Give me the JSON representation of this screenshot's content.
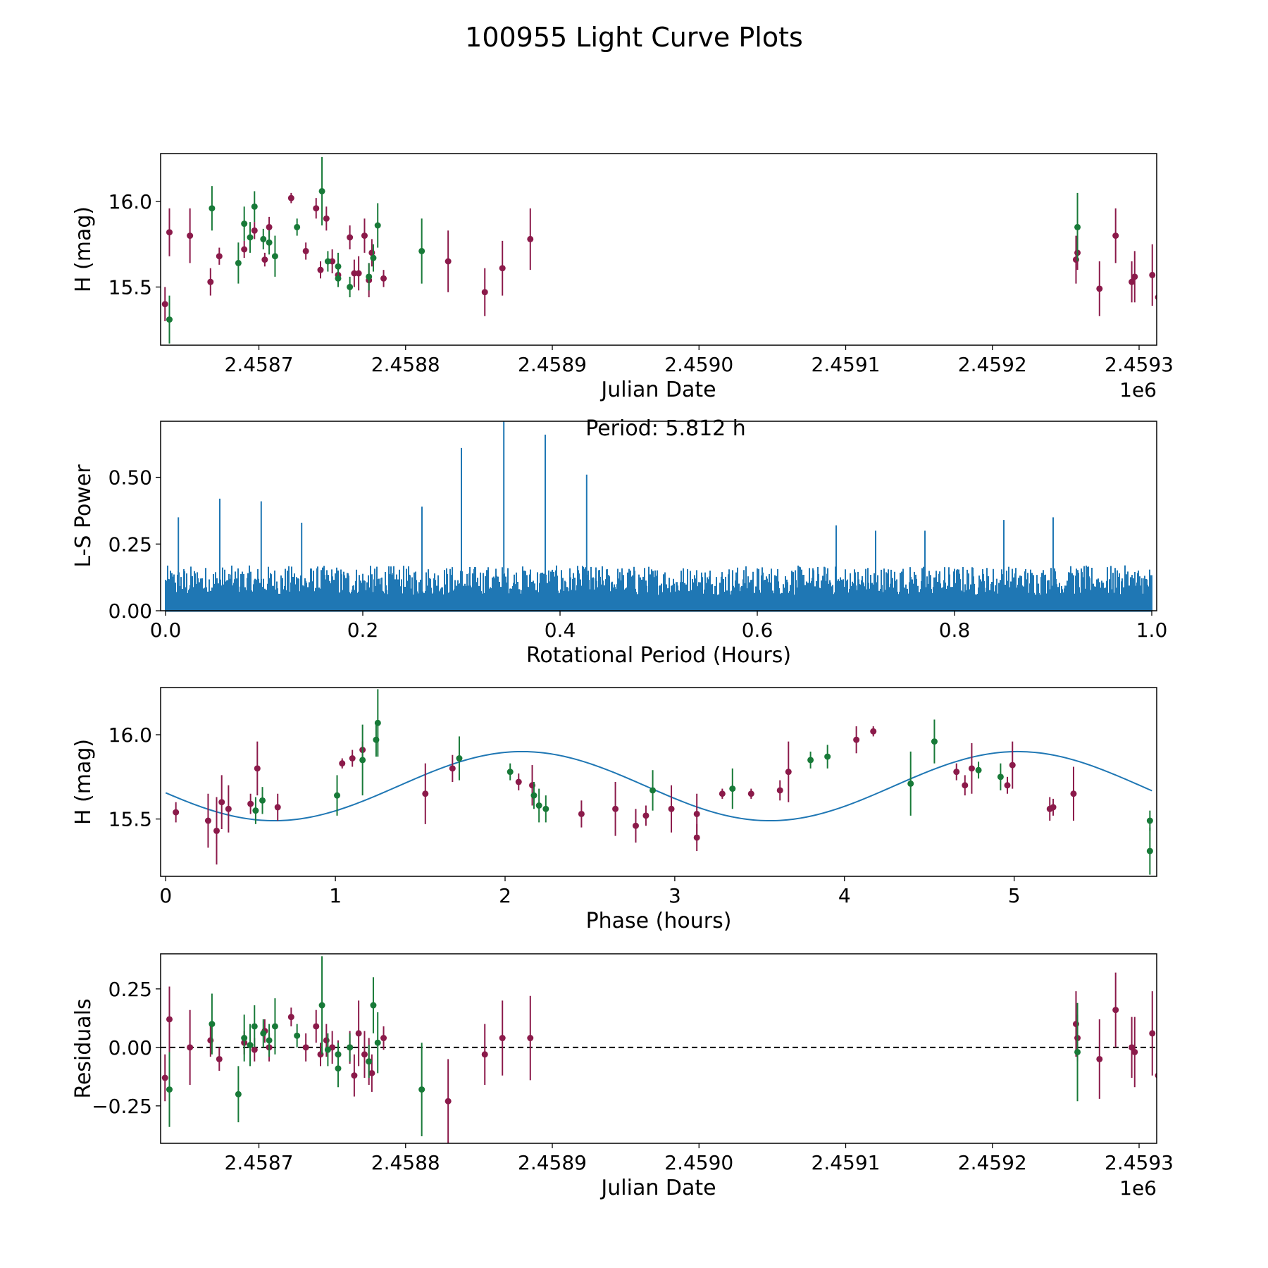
{
  "figure": {
    "title": "100955 Light Curve Plots",
    "colors": {
      "band_r": "#8b1a4a",
      "band_g": "#187a38",
      "line": "#1f77b4"
    }
  },
  "chart_data": [
    {
      "type": "scatter",
      "name": "light-curve",
      "xlabel": "Julian Date",
      "ylabel": "H (mag)",
      "x_offset_label": "1e6",
      "xlim": [
        2.458633,
        2.459312
      ],
      "ylim": [
        15.16,
        16.28
      ],
      "xticks": [
        2.4587,
        2.4588,
        2.4589,
        2.459,
        2.4591,
        2.4592,
        2.4593
      ],
      "xtick_labels": [
        "2.4587",
        "2.4588",
        "2.4589",
        "2.4590",
        "2.4591",
        "2.4592",
        "2.4593"
      ],
      "yticks": [
        15.5,
        16.0
      ],
      "ytick_labels": [
        "15.5",
        "16.0"
      ],
      "series": [
        {
          "name": "band-r",
          "color": "#8b1a4a",
          "points": [
            [
              2.458636,
              15.4,
              0.1
            ],
            [
              2.458639,
              15.82,
              0.14
            ],
            [
              2.458653,
              15.8,
              0.16
            ],
            [
              2.458667,
              15.53,
              0.08
            ],
            [
              2.458673,
              15.68,
              0.05
            ],
            [
              2.45869,
              15.72,
              0.05
            ],
            [
              2.458697,
              15.83,
              0.05
            ],
            [
              2.458704,
              15.66,
              0.04
            ],
            [
              2.458707,
              15.85,
              0.06
            ],
            [
              2.458722,
              16.02,
              0.03
            ],
            [
              2.458732,
              15.71,
              0.05
            ],
            [
              2.458739,
              15.96,
              0.06
            ],
            [
              2.458742,
              15.6,
              0.05
            ],
            [
              2.458746,
              15.9,
              0.07
            ],
            [
              2.45875,
              15.65,
              0.07
            ],
            [
              2.458754,
              15.57,
              0.06
            ],
            [
              2.458762,
              15.79,
              0.07
            ],
            [
              2.458765,
              15.58,
              0.08
            ],
            [
              2.458768,
              15.58,
              0.1
            ],
            [
              2.458772,
              15.8,
              0.1
            ],
            [
              2.458775,
              15.54,
              0.1
            ],
            [
              2.458777,
              15.7,
              0.08
            ],
            [
              2.458785,
              15.55,
              0.05
            ],
            [
              2.458829,
              15.65,
              0.18
            ],
            [
              2.458854,
              15.47,
              0.14
            ],
            [
              2.458866,
              15.61,
              0.16
            ],
            [
              2.458885,
              15.78,
              0.18
            ],
            [
              2.459257,
              15.66,
              0.14
            ],
            [
              2.459258,
              15.7,
              0.1
            ],
            [
              2.459273,
              15.49,
              0.16
            ],
            [
              2.459284,
              15.8,
              0.16
            ],
            [
              2.459295,
              15.53,
              0.12
            ],
            [
              2.459297,
              15.56,
              0.15
            ],
            [
              2.459309,
              15.57,
              0.18
            ],
            [
              2.459313,
              15.44,
              0.2
            ]
          ]
        },
        {
          "name": "band-g",
          "color": "#187a38",
          "points": [
            [
              2.458639,
              15.31,
              0.14
            ],
            [
              2.458668,
              15.96,
              0.13
            ],
            [
              2.458686,
              15.64,
              0.12
            ],
            [
              2.45869,
              15.87,
              0.1
            ],
            [
              2.458694,
              15.79,
              0.09
            ],
            [
              2.458697,
              15.97,
              0.09
            ],
            [
              2.458703,
              15.78,
              0.06
            ],
            [
              2.458707,
              15.76,
              0.07
            ],
            [
              2.458711,
              15.68,
              0.12
            ],
            [
              2.458726,
              15.85,
              0.05
            ],
            [
              2.458743,
              16.06,
              0.2
            ],
            [
              2.458747,
              15.65,
              0.06
            ],
            [
              2.458754,
              15.62,
              0.08
            ],
            [
              2.458754,
              15.55,
              0.05
            ],
            [
              2.458762,
              15.5,
              0.06
            ],
            [
              2.458775,
              15.56,
              0.08
            ],
            [
              2.458778,
              15.67,
              0.08
            ],
            [
              2.458781,
              15.86,
              0.13
            ],
            [
              2.458811,
              15.71,
              0.19
            ],
            [
              2.459258,
              15.85,
              0.2
            ]
          ]
        }
      ]
    },
    {
      "type": "line",
      "name": "periodogram",
      "xlabel": "Rotational Period (Hours)",
      "ylabel": "L-S Power",
      "xlim": [
        -0.005,
        1.005
      ],
      "ylim": [
        0.0,
        0.71
      ],
      "xticks": [
        0.0,
        0.2,
        0.4,
        0.6,
        0.8,
        1.0
      ],
      "xtick_labels": [
        "0.0",
        "0.2",
        "0.4",
        "0.6",
        "0.8",
        "1.0"
      ],
      "yticks": [
        0.0,
        0.25,
        0.5
      ],
      "ytick_labels": [
        "0.00",
        "0.25",
        "0.50"
      ],
      "annotation": "Period: 5.812 h",
      "color": "#1f77b4",
      "baseline": {
        "x_range": [
          0.0,
          1.0
        ],
        "typical_max": 0.17,
        "noise_seed": 12345
      },
      "peaks": [
        [
          0.013,
          0.35
        ],
        [
          0.055,
          0.42
        ],
        [
          0.097,
          0.41
        ],
        [
          0.138,
          0.33
        ],
        [
          0.26,
          0.39
        ],
        [
          0.3,
          0.61
        ],
        [
          0.343,
          0.71
        ],
        [
          0.385,
          0.66
        ],
        [
          0.427,
          0.51
        ],
        [
          0.68,
          0.32
        ],
        [
          0.72,
          0.3
        ],
        [
          0.77,
          0.3
        ],
        [
          0.85,
          0.34
        ],
        [
          0.9,
          0.35
        ]
      ]
    },
    {
      "type": "scatter",
      "name": "phase-folded",
      "xlabel": "Phase (hours)",
      "ylabel": "H (mag)",
      "xlim": [
        -0.03,
        5.84
      ],
      "ylim": [
        15.16,
        16.28
      ],
      "xticks": [
        0,
        1,
        2,
        3,
        4,
        5
      ],
      "xtick_labels": [
        "0",
        "1",
        "2",
        "3",
        "4",
        "5"
      ],
      "yticks": [
        15.5,
        16.0
      ],
      "ytick_labels": [
        "15.5",
        "16.0"
      ],
      "fit": {
        "mean": 15.695,
        "amplitude": 0.205,
        "period": 2.92,
        "phase_offset": 0.64,
        "x_range": [
          0,
          5.812
        ]
      },
      "series": [
        {
          "name": "band-r",
          "color": "#8b1a4a",
          "points": [
            [
              0.06,
              15.54,
              0.06
            ],
            [
              0.25,
              15.49,
              0.16
            ],
            [
              0.3,
              15.43,
              0.2
            ],
            [
              0.33,
              15.6,
              0.16
            ],
            [
              0.37,
              15.56,
              0.14
            ],
            [
              0.5,
              15.59,
              0.06
            ],
            [
              0.54,
              15.8,
              0.16
            ],
            [
              0.66,
              15.57,
              0.08
            ],
            [
              1.04,
              15.83,
              0.03
            ],
            [
              1.1,
              15.86,
              0.05
            ],
            [
              1.16,
              15.91,
              0.05
            ],
            [
              1.53,
              15.65,
              0.18
            ],
            [
              1.69,
              15.8,
              0.08
            ],
            [
              2.08,
              15.72,
              0.05
            ],
            [
              2.16,
              15.7,
              0.12
            ],
            [
              2.45,
              15.53,
              0.08
            ],
            [
              2.65,
              15.56,
              0.16
            ],
            [
              2.77,
              15.46,
              0.1
            ],
            [
              2.83,
              15.52,
              0.06
            ],
            [
              2.98,
              15.56,
              0.14
            ],
            [
              3.13,
              15.53,
              0.12
            ],
            [
              3.13,
              15.39,
              0.08
            ],
            [
              3.28,
              15.65,
              0.03
            ],
            [
              3.45,
              15.65,
              0.03
            ],
            [
              3.62,
              15.67,
              0.06
            ],
            [
              3.67,
              15.78,
              0.18
            ],
            [
              4.07,
              15.97,
              0.08
            ],
            [
              4.17,
              16.02,
              0.03
            ],
            [
              4.66,
              15.78,
              0.05
            ],
            [
              4.71,
              15.7,
              0.06
            ],
            [
              4.75,
              15.8,
              0.15
            ],
            [
              4.96,
              15.7,
              0.05
            ],
            [
              4.99,
              15.82,
              0.14
            ],
            [
              5.21,
              15.56,
              0.07
            ],
            [
              5.23,
              15.57,
              0.05
            ],
            [
              5.35,
              15.65,
              0.16
            ]
          ]
        },
        {
          "name": "band-g",
          "color": "#187a38",
          "points": [
            [
              0.53,
              15.55,
              0.08
            ],
            [
              0.57,
              15.61,
              0.08
            ],
            [
              1.01,
              15.64,
              0.12
            ],
            [
              1.16,
              15.85,
              0.21
            ],
            [
              1.24,
              15.97,
              0.1
            ],
            [
              1.25,
              16.07,
              0.2
            ],
            [
              1.73,
              15.86,
              0.13
            ],
            [
              2.03,
              15.78,
              0.05
            ],
            [
              2.17,
              15.64,
              0.08
            ],
            [
              2.2,
              15.58,
              0.1
            ],
            [
              2.24,
              15.56,
              0.08
            ],
            [
              2.87,
              15.67,
              0.12
            ],
            [
              3.34,
              15.68,
              0.12
            ],
            [
              3.8,
              15.85,
              0.05
            ],
            [
              3.9,
              15.87,
              0.07
            ],
            [
              4.39,
              15.71,
              0.19
            ],
            [
              4.53,
              15.96,
              0.13
            ],
            [
              4.79,
              15.79,
              0.05
            ],
            [
              4.92,
              15.75,
              0.08
            ],
            [
              5.8,
              15.49,
              0.06
            ],
            [
              5.8,
              15.31,
              0.14
            ]
          ]
        }
      ]
    },
    {
      "type": "scatter",
      "name": "residuals",
      "xlabel": "Julian Date",
      "ylabel": "Residuals",
      "x_offset_label": "1e6",
      "xlim": [
        2.458633,
        2.459312
      ],
      "ylim": [
        -0.41,
        0.4
      ],
      "xticks": [
        2.4587,
        2.4588,
        2.4589,
        2.459,
        2.4591,
        2.4592,
        2.4593
      ],
      "xtick_labels": [
        "2.4587",
        "2.4588",
        "2.4589",
        "2.4590",
        "2.4591",
        "2.4592",
        "2.4593"
      ],
      "yticks": [
        -0.25,
        0.0,
        0.25
      ],
      "ytick_labels": [
        "−0.25",
        "0.00",
        "0.25"
      ],
      "zero_line": 0.0,
      "series": [
        {
          "name": "band-r",
          "color": "#8b1a4a",
          "points": [
            [
              2.458636,
              -0.13,
              0.1
            ],
            [
              2.458639,
              0.12,
              0.14
            ],
            [
              2.458653,
              0.0,
              0.16
            ],
            [
              2.458667,
              0.03,
              0.07
            ],
            [
              2.458673,
              -0.05,
              0.05
            ],
            [
              2.45869,
              0.02,
              0.05
            ],
            [
              2.458697,
              -0.01,
              0.05
            ],
            [
              2.458704,
              0.07,
              0.05
            ],
            [
              2.458707,
              0.0,
              0.06
            ],
            [
              2.458722,
              0.13,
              0.04
            ],
            [
              2.458732,
              0.0,
              0.06
            ],
            [
              2.458739,
              0.09,
              0.07
            ],
            [
              2.458742,
              -0.03,
              0.05
            ],
            [
              2.458746,
              0.03,
              0.07
            ],
            [
              2.45875,
              0.0,
              0.07
            ],
            [
              2.458754,
              -0.03,
              0.06
            ],
            [
              2.458762,
              0.0,
              0.07
            ],
            [
              2.458765,
              -0.12,
              0.09
            ],
            [
              2.458768,
              0.06,
              0.14
            ],
            [
              2.458772,
              -0.03,
              0.1
            ],
            [
              2.458775,
              -0.06,
              0.1
            ],
            [
              2.458777,
              -0.11,
              0.08
            ],
            [
              2.458785,
              0.04,
              0.05
            ],
            [
              2.458829,
              -0.23,
              0.18
            ],
            [
              2.458854,
              -0.03,
              0.13
            ],
            [
              2.458866,
              0.04,
              0.16
            ],
            [
              2.458885,
              0.04,
              0.18
            ],
            [
              2.459257,
              0.1,
              0.14
            ],
            [
              2.459258,
              0.04,
              0.1
            ],
            [
              2.459273,
              -0.05,
              0.17
            ],
            [
              2.459284,
              0.16,
              0.16
            ],
            [
              2.459295,
              0.0,
              0.13
            ],
            [
              2.459297,
              -0.02,
              0.15
            ],
            [
              2.459309,
              0.06,
              0.18
            ],
            [
              2.459313,
              -0.12,
              0.21
            ]
          ]
        },
        {
          "name": "band-g",
          "color": "#187a38",
          "points": [
            [
              2.458639,
              -0.18,
              0.16
            ],
            [
              2.458668,
              0.1,
              0.13
            ],
            [
              2.458686,
              -0.2,
              0.12
            ],
            [
              2.45869,
              0.04,
              0.1
            ],
            [
              2.458694,
              0.01,
              0.09
            ],
            [
              2.458697,
              0.09,
              0.09
            ],
            [
              2.458703,
              0.06,
              0.06
            ],
            [
              2.458707,
              0.03,
              0.07
            ],
            [
              2.458711,
              0.09,
              0.12
            ],
            [
              2.458726,
              0.05,
              0.05
            ],
            [
              2.458743,
              0.18,
              0.21
            ],
            [
              2.458747,
              -0.01,
              0.07
            ],
            [
              2.458754,
              -0.09,
              0.08
            ],
            [
              2.458754,
              -0.03,
              0.05
            ],
            [
              2.458762,
              0.0,
              0.06
            ],
            [
              2.458775,
              -0.06,
              0.07
            ],
            [
              2.458778,
              0.18,
              0.12
            ],
            [
              2.458781,
              0.02,
              0.13
            ],
            [
              2.458811,
              -0.18,
              0.2
            ],
            [
              2.459258,
              -0.02,
              0.21
            ]
          ]
        }
      ]
    }
  ]
}
